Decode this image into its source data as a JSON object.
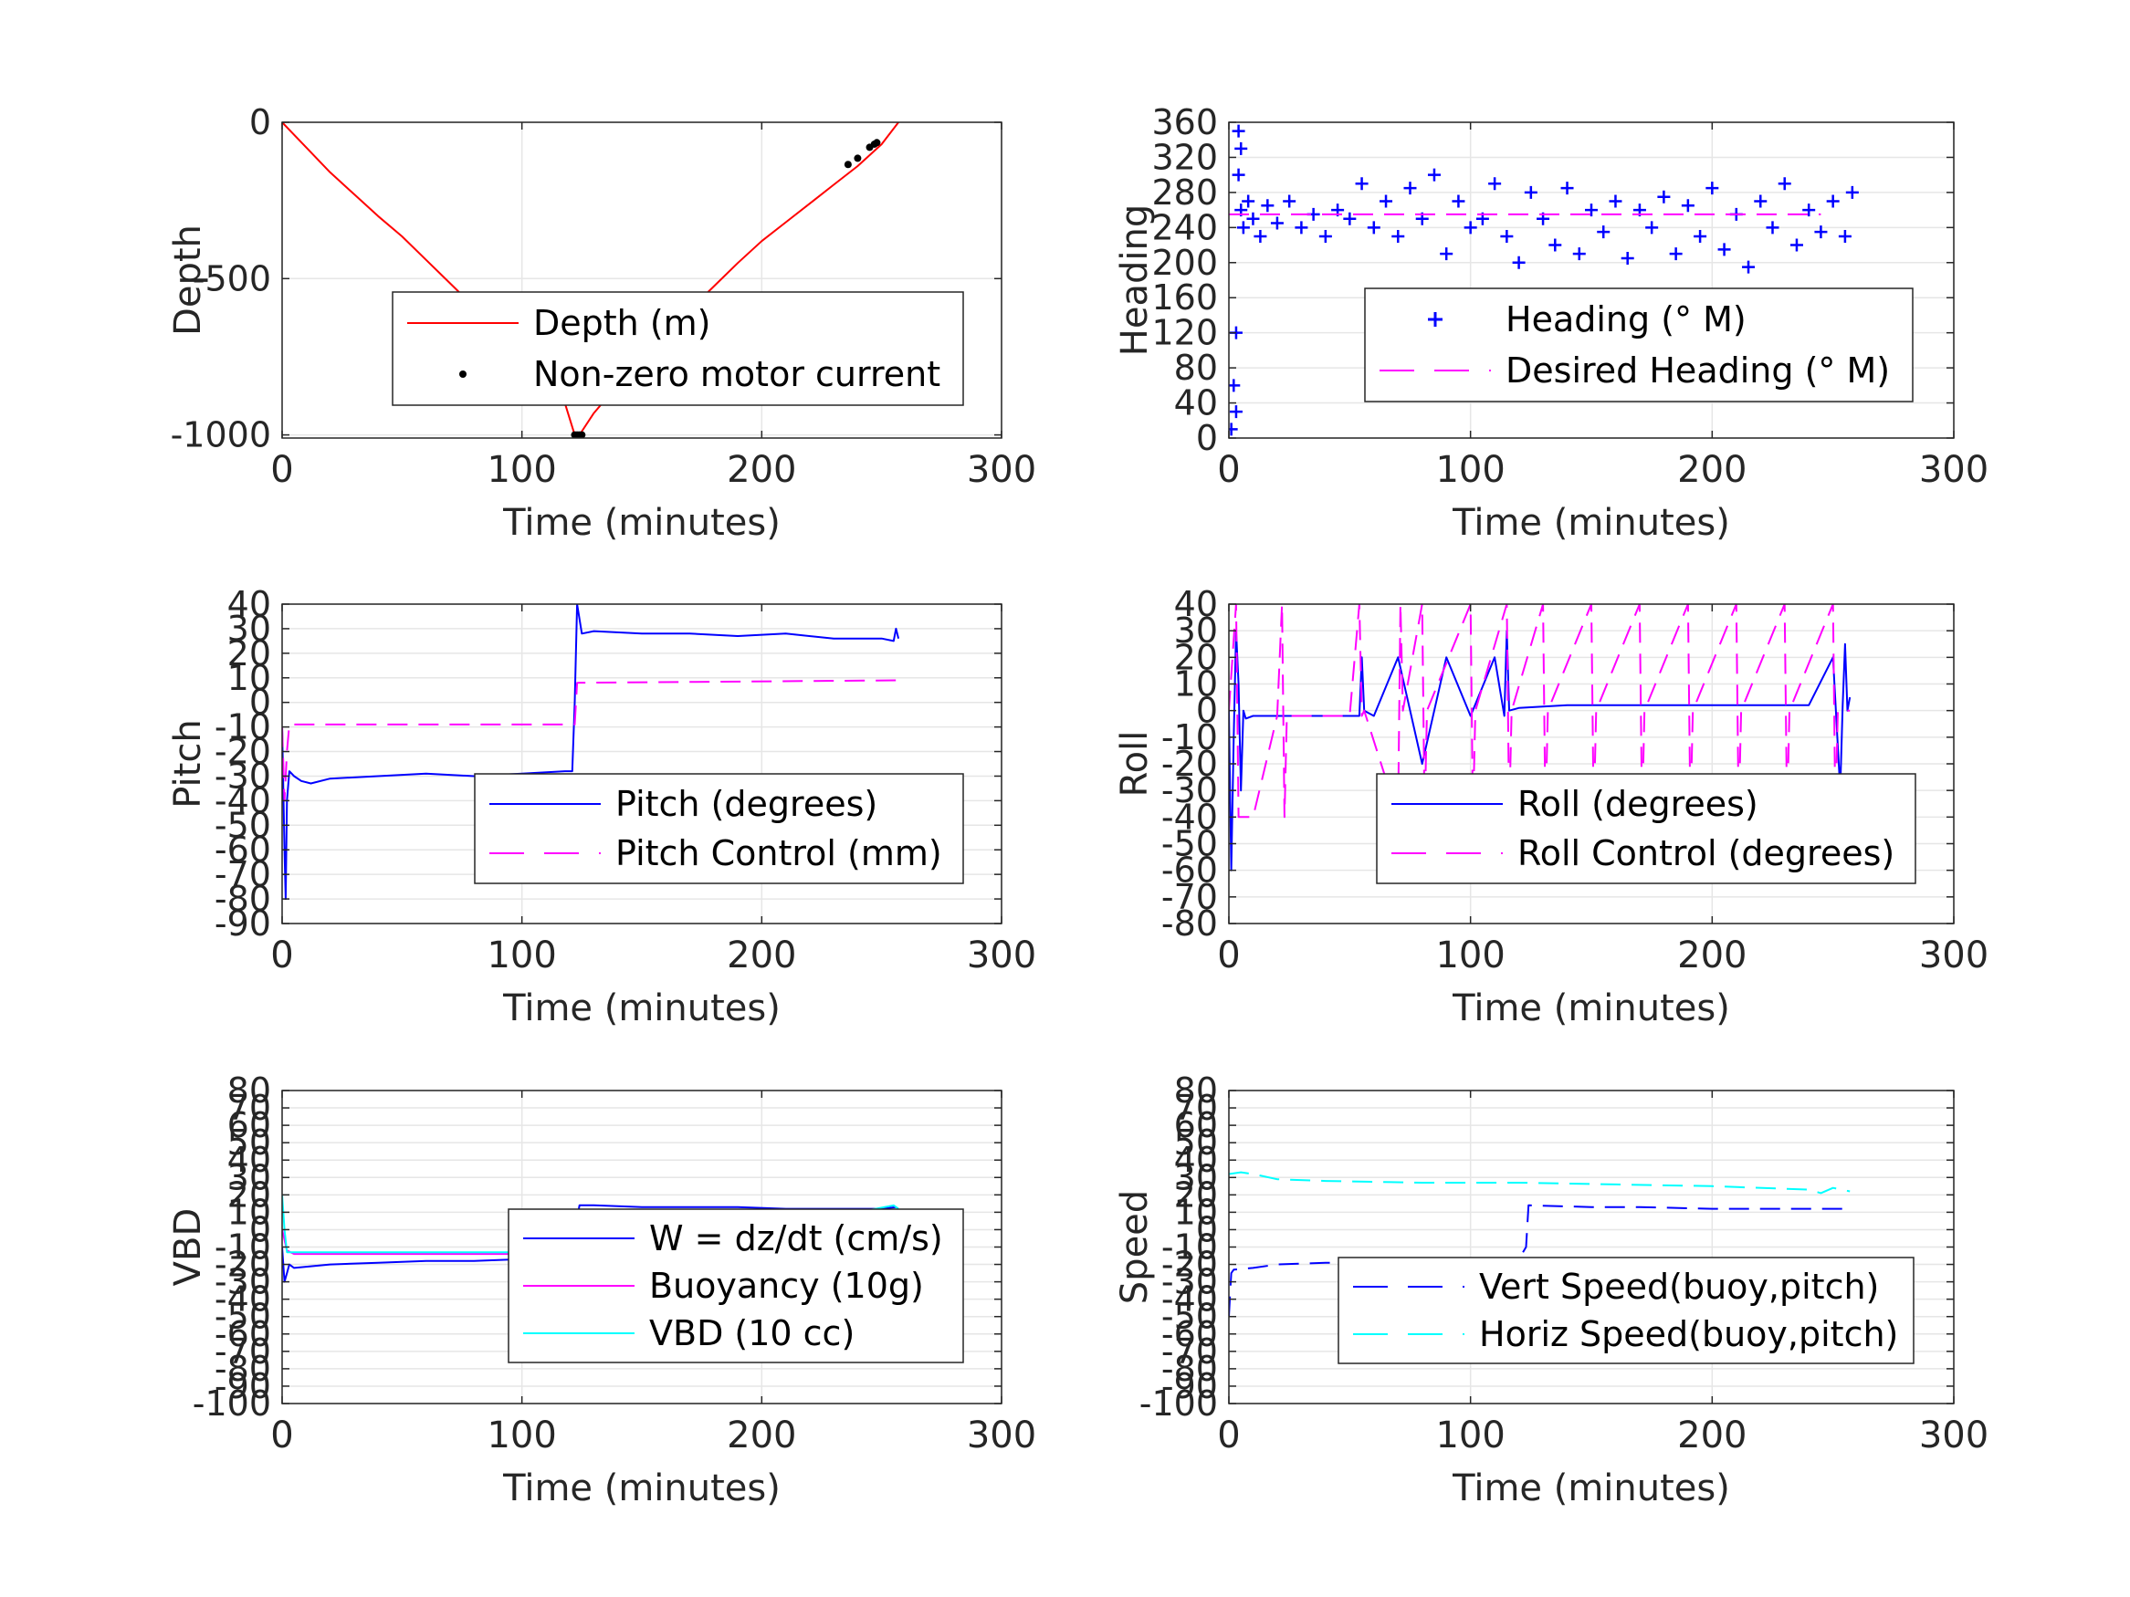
{
  "figure": {
    "background": "#ffffff",
    "axis_color": "#262626",
    "grid_color": "#e6e6e6"
  },
  "chart_data": [
    {
      "id": "depth",
      "type": "line",
      "xlabel": "Time (minutes)",
      "ylabel": "Depth",
      "xlim": [
        0,
        300
      ],
      "ylim": [
        -1010,
        0
      ],
      "xticks": [
        0,
        100,
        200,
        300
      ],
      "yticks": [
        0,
        -500,
        -1000
      ],
      "grid": true,
      "legend_position": "lower-right",
      "series": [
        {
          "name": "Depth (m)",
          "style": "line",
          "color": "#ff0000",
          "x": [
            0,
            10,
            20,
            30,
            40,
            50,
            60,
            70,
            80,
            90,
            100,
            110,
            118,
            122,
            124,
            130,
            140,
            150,
            160,
            170,
            180,
            190,
            200,
            210,
            220,
            230,
            240,
            250,
            257
          ],
          "y": [
            0,
            -80,
            -160,
            -230,
            -300,
            -365,
            -440,
            -515,
            -590,
            -665,
            -745,
            -830,
            -900,
            -1000,
            -1000,
            -930,
            -840,
            -760,
            -680,
            -600,
            -525,
            -450,
            -380,
            -320,
            -260,
            -200,
            -140,
            -70,
            0
          ]
        },
        {
          "name": "Non-zero motor current",
          "style": "points",
          "color": "#000000",
          "x": [
            122,
            123,
            124,
            125,
            236,
            240,
            245,
            247,
            248
          ],
          "y": [
            -1000,
            -1000,
            -1000,
            -1000,
            -135,
            -115,
            -80,
            -70,
            -65
          ]
        }
      ]
    },
    {
      "id": "heading",
      "type": "scatter",
      "xlabel": "Time (minutes)",
      "ylabel": "Heading",
      "xlim": [
        0,
        300
      ],
      "ylim": [
        0,
        360
      ],
      "xticks": [
        0,
        100,
        200,
        300
      ],
      "yticks": [
        0,
        40,
        80,
        120,
        160,
        200,
        240,
        280,
        320,
        360
      ],
      "grid": true,
      "legend_position": "lower-right",
      "series": [
        {
          "name": "Heading (° M)",
          "style": "plus",
          "color": "#0000ff",
          "x": [
            1,
            2,
            3,
            3,
            4,
            4,
            5,
            5,
            6,
            8,
            10,
            13,
            16,
            20,
            25,
            30,
            35,
            40,
            45,
            50,
            55,
            60,
            65,
            70,
            75,
            80,
            85,
            90,
            95,
            100,
            105,
            110,
            115,
            120,
            125,
            130,
            135,
            140,
            145,
            150,
            155,
            160,
            165,
            170,
            175,
            180,
            185,
            190,
            195,
            200,
            205,
            210,
            215,
            220,
            225,
            230,
            235,
            240,
            245,
            250,
            255,
            258
          ],
          "y": [
            10,
            60,
            120,
            30,
            350,
            300,
            330,
            260,
            240,
            270,
            250,
            230,
            265,
            245,
            270,
            240,
            255,
            230,
            260,
            250,
            290,
            240,
            270,
            230,
            285,
            250,
            300,
            210,
            270,
            240,
            250,
            290,
            230,
            200,
            280,
            250,
            220,
            285,
            210,
            260,
            235,
            270,
            205,
            260,
            240,
            275,
            210,
            265,
            230,
            285,
            215,
            255,
            195,
            270,
            240,
            290,
            220,
            260,
            235,
            270,
            230,
            280
          ]
        },
        {
          "name": "Desired Heading (° M)",
          "style": "dashed",
          "color": "#ff00ff",
          "x": [
            0,
            245
          ],
          "y": [
            255,
            255
          ]
        }
      ]
    },
    {
      "id": "pitch",
      "type": "line",
      "xlabel": "Time (minutes)",
      "ylabel": "Pitch",
      "xlim": [
        0,
        300
      ],
      "ylim": [
        -90,
        40
      ],
      "xticks": [
        0,
        100,
        200,
        300
      ],
      "yticks": [
        40,
        30,
        20,
        10,
        0,
        -10,
        -20,
        -30,
        -40,
        -50,
        -60,
        -70,
        -80,
        -90
      ],
      "grid": true,
      "legend_position": "lower-right",
      "series": [
        {
          "name": "Pitch (degrees)",
          "style": "line",
          "color": "#0000ff",
          "x": [
            0,
            1,
            1.5,
            2,
            3,
            5,
            8,
            12,
            20,
            40,
            60,
            80,
            100,
            118,
            121,
            122,
            123,
            125,
            130,
            150,
            170,
            190,
            210,
            230,
            250,
            255,
            256,
            257
          ],
          "y": [
            -10,
            -60,
            -80,
            -40,
            -28,
            -30,
            -32,
            -33,
            -31,
            -30,
            -29,
            -30,
            -29,
            -28,
            -28,
            0,
            40,
            28,
            29,
            28,
            28,
            27,
            28,
            26,
            26,
            25,
            30,
            26
          ]
        },
        {
          "name": "Pitch Control (mm)",
          "style": "dashed",
          "color": "#ff00ff",
          "x": [
            0,
            1,
            2,
            3,
            5,
            122,
            123,
            257
          ],
          "y": [
            -10,
            -40,
            -20,
            -9,
            -9,
            -9,
            8,
            9
          ]
        }
      ]
    },
    {
      "id": "roll",
      "type": "line",
      "xlabel": "Time (minutes)",
      "ylabel": "Roll",
      "xlim": [
        0,
        300
      ],
      "ylim": [
        -80,
        40
      ],
      "xticks": [
        0,
        100,
        200,
        300
      ],
      "yticks": [
        40,
        30,
        20,
        10,
        0,
        -10,
        -20,
        -30,
        -40,
        -50,
        -60,
        -70,
        -80
      ],
      "grid": true,
      "legend_position": "lower-right",
      "series": [
        {
          "name": "Roll (degrees)",
          "style": "line",
          "color": "#0000ff",
          "x": [
            0,
            1,
            2,
            3,
            4,
            5,
            6,
            7,
            10,
            20,
            40,
            54,
            55,
            56,
            60,
            70,
            80,
            90,
            100,
            110,
            114,
            115,
            116,
            120,
            140,
            160,
            180,
            200,
            220,
            240,
            250,
            253,
            254,
            255,
            256,
            257
          ],
          "y": [
            0,
            -60,
            -10,
            30,
            10,
            -30,
            0,
            -3,
            -2,
            -2,
            -2,
            -2,
            20,
            0,
            -2,
            20,
            -20,
            20,
            -2,
            20,
            -2,
            30,
            0,
            1,
            2,
            2,
            2,
            2,
            2,
            2,
            20,
            -30,
            2,
            25,
            0,
            5
          ]
        },
        {
          "name": "Roll Control (degrees)",
          "style": "dashed",
          "color": "#ff00ff",
          "x": [
            0,
            3,
            4,
            10,
            20,
            22,
            23,
            24,
            50,
            54,
            55,
            56,
            70,
            71,
            72,
            80,
            81,
            82,
            100,
            101,
            102,
            115,
            116,
            117,
            130,
            131,
            132,
            150,
            151,
            152,
            170,
            171,
            172,
            190,
            191,
            192,
            210,
            211,
            212,
            230,
            231,
            232,
            250,
            251,
            252,
            257
          ],
          "y": [
            0,
            40,
            -40,
            -40,
            -2,
            40,
            -40,
            -2,
            -2,
            40,
            -2,
            0,
            -40,
            40,
            0,
            40,
            -40,
            0,
            40,
            -40,
            0,
            40,
            -40,
            0,
            40,
            -40,
            0,
            40,
            -40,
            0,
            40,
            -40,
            0,
            40,
            -40,
            0,
            40,
            -40,
            0,
            40,
            -40,
            0,
            40,
            -40,
            0,
            0
          ]
        }
      ]
    },
    {
      "id": "vbd",
      "type": "line",
      "xlabel": "Time (minutes)",
      "ylabel": "VBD",
      "xlim": [
        0,
        300
      ],
      "ylim": [
        -100,
        80
      ],
      "xticks": [
        0,
        100,
        200,
        300
      ],
      "yticks": [
        80,
        70,
        60,
        50,
        40,
        30,
        20,
        10,
        0,
        -10,
        -20,
        -30,
        -40,
        -50,
        -60,
        -70,
        -80,
        -90,
        -100
      ],
      "grid": true,
      "legend_position": "lower-right",
      "series": [
        {
          "name": "W = dz/dt (cm/s)",
          "style": "line",
          "color": "#0000ff",
          "x": [
            0,
            1,
            2,
            3,
            5,
            20,
            40,
            60,
            80,
            100,
            118,
            121,
            124,
            130,
            150,
            170,
            190,
            210,
            230,
            250,
            256
          ],
          "y": [
            -10,
            -30,
            -25,
            -20,
            -22,
            -20,
            -19,
            -18,
            -18,
            -17,
            -16,
            -10,
            14,
            14,
            13,
            13,
            13,
            12,
            12,
            12,
            13
          ]
        },
        {
          "name": "Buoyancy (10g)",
          "style": "line",
          "color": "#ff00ff",
          "x": [
            0,
            2,
            5,
            20,
            60,
            100,
            121,
            124,
            150,
            200,
            230,
            240,
            250,
            257
          ],
          "y": [
            0,
            -12,
            -14,
            -14,
            -14,
            -14,
            -14,
            10,
            10,
            10,
            9,
            8,
            10,
            10
          ]
        },
        {
          "name": "VBD (10 cc)",
          "style": "line",
          "color": "#00ffff",
          "x": [
            0,
            1,
            2,
            5,
            60,
            100,
            121,
            123,
            150,
            200,
            240,
            255,
            257
          ],
          "y": [
            20,
            0,
            -13,
            -13,
            -13,
            -13,
            -13,
            10,
            10,
            10,
            10,
            14,
            12
          ]
        }
      ]
    },
    {
      "id": "speed",
      "type": "line",
      "xlabel": "Time (minutes)",
      "ylabel": "Speed",
      "xlim": [
        0,
        300
      ],
      "ylim": [
        -100,
        80
      ],
      "xticks": [
        0,
        100,
        200,
        300
      ],
      "yticks": [
        80,
        70,
        60,
        50,
        40,
        30,
        20,
        10,
        0,
        -10,
        -20,
        -30,
        -40,
        -50,
        -60,
        -70,
        -80,
        -90,
        -100
      ],
      "grid": true,
      "legend_position": "lower-right",
      "series": [
        {
          "name": "Vert Speed(buoy,pitch)",
          "style": "dashed",
          "color": "#0000ff",
          "x": [
            0,
            1,
            2,
            10,
            20,
            40,
            60,
            80,
            100,
            120,
            123,
            124,
            150,
            170,
            200,
            230,
            250,
            257
          ],
          "y": [
            -50,
            -25,
            -23,
            -22,
            -20,
            -19,
            -19,
            -19,
            -19,
            -17,
            -10,
            14,
            13,
            13,
            12,
            12,
            12,
            12
          ]
        },
        {
          "name": "Horiz Speed(buoy,pitch)",
          "style": "dashed",
          "color": "#00ffff",
          "x": [
            0,
            5,
            10,
            20,
            40,
            80,
            120,
            160,
            200,
            240,
            245,
            250,
            257
          ],
          "y": [
            32,
            33,
            32,
            29,
            28,
            27,
            27,
            26,
            25,
            23,
            21,
            24,
            22
          ]
        }
      ]
    }
  ]
}
